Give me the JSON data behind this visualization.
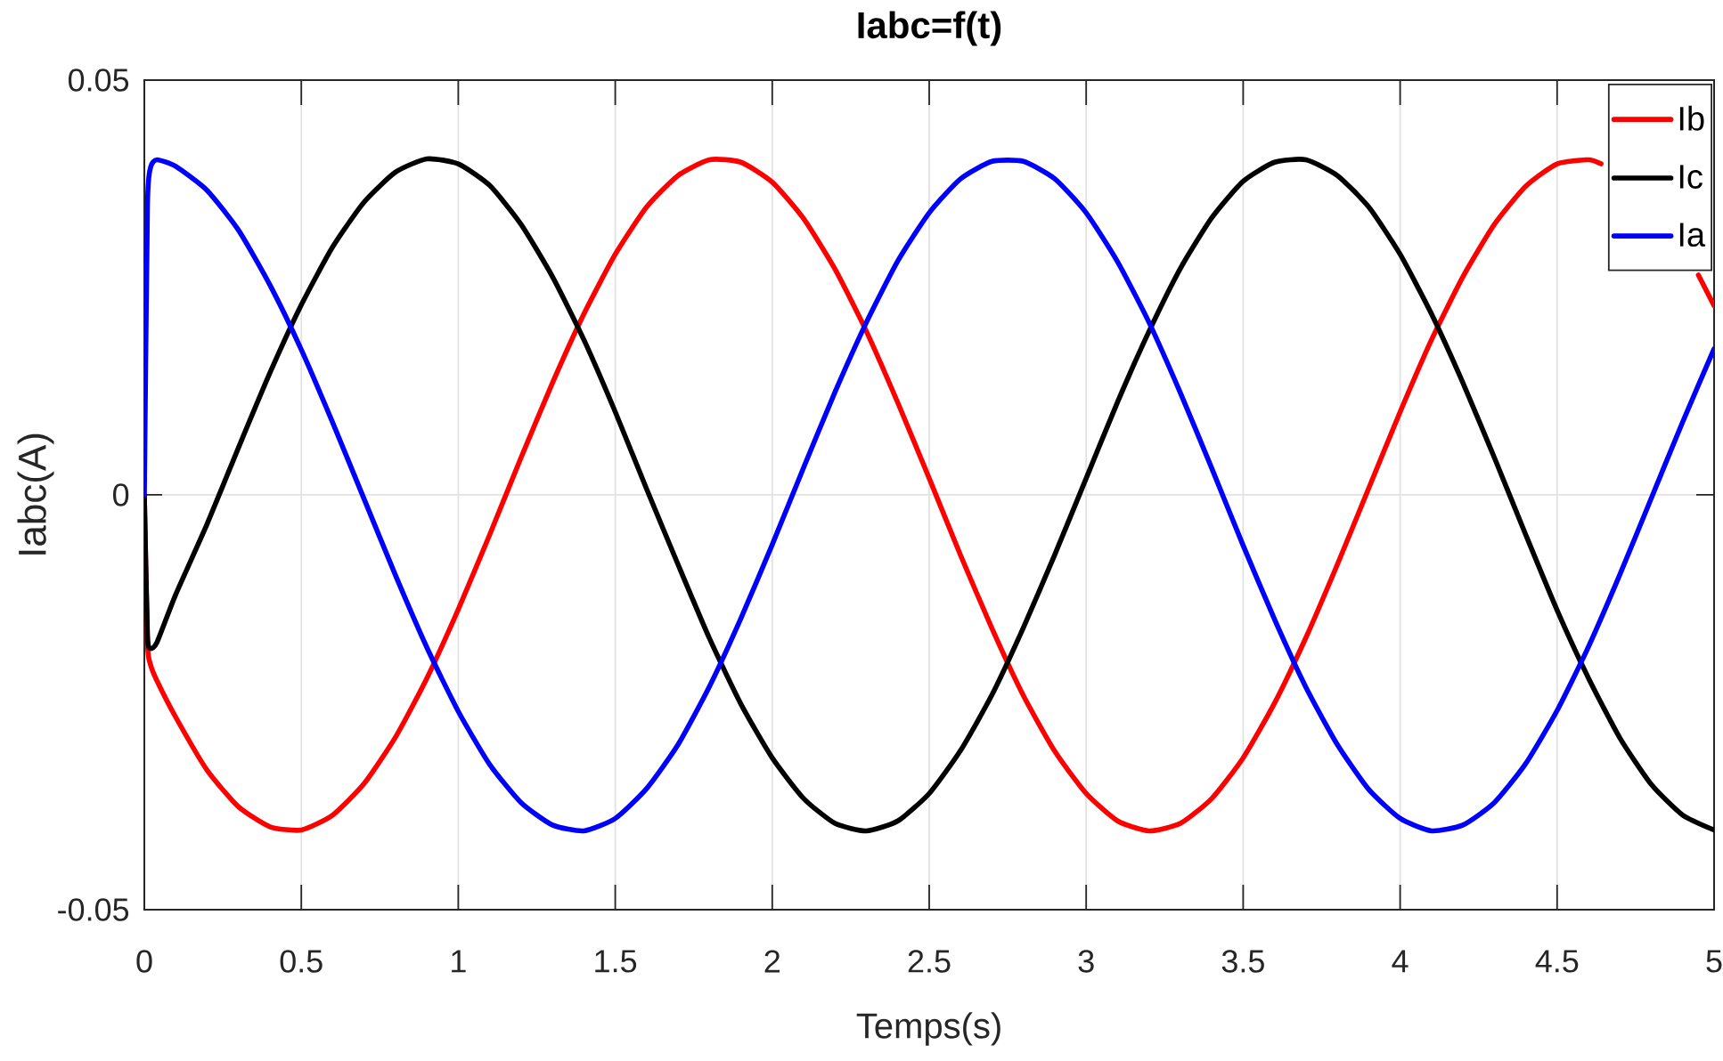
{
  "chart_data": {
    "type": "line",
    "title": "Iabc=f(t)",
    "xlabel": "Temps(s)",
    "ylabel": "Iabc(A)",
    "x": [
      0,
      0.01,
      0.02,
      0.04,
      0.1,
      0.2,
      0.3,
      0.4,
      0.5,
      0.6,
      0.7,
      0.8,
      0.9,
      1.0,
      1.1,
      1.2,
      1.3,
      1.4,
      1.5,
      1.6,
      1.7,
      1.8,
      1.9,
      2.0,
      2.1,
      2.2,
      2.3,
      2.4,
      2.5,
      2.6,
      2.7,
      2.8,
      2.9,
      3.0,
      3.1,
      3.2,
      3.3,
      3.4,
      3.5,
      3.6,
      3.7,
      3.8,
      3.9,
      4.0,
      4.1,
      4.2,
      4.3,
      4.4,
      4.5,
      4.6,
      4.7,
      4.8,
      4.9,
      5.0
    ],
    "series": [
      {
        "name": "Ib",
        "color": "#ff0000",
        "x": [
          0,
          0.01,
          0.02,
          0.04,
          0.1,
          0.2,
          0.3,
          0.4,
          0.5,
          0.6,
          0.7,
          0.8,
          0.9,
          1.0,
          1.1,
          1.2,
          1.3,
          1.4,
          1.5,
          1.6,
          1.7,
          1.8,
          1.9,
          2.0,
          2.1,
          2.2,
          2.3,
          2.4,
          2.5,
          2.6,
          2.7,
          2.8,
          2.9,
          3.0,
          3.1,
          3.2,
          3.3,
          3.4,
          3.5,
          3.6,
          3.7,
          3.8,
          3.9,
          4.0,
          4.1,
          4.2,
          4.3,
          4.4,
          4.5,
          4.6,
          4.64,
          4.8,
          4.95,
          5.0
        ],
        "values": [
          0,
          -0.018,
          -0.0205,
          -0.0224,
          -0.0268,
          -0.0332,
          -0.0376,
          -0.04,
          -0.0404,
          -0.0386,
          -0.0348,
          -0.0292,
          -0.0221,
          -0.0138,
          -0.0048,
          0.0045,
          0.0135,
          0.0218,
          0.029,
          0.0347,
          0.0385,
          0.0404,
          0.0401,
          0.0377,
          0.0333,
          0.0272,
          0.0197,
          0.0111,
          0.002,
          -0.0073,
          -0.0161,
          -0.0242,
          -0.0309,
          -0.036,
          -0.0393,
          -0.0405,
          -0.0396,
          -0.0366,
          -0.0317,
          -0.0251,
          -0.0172,
          -0.0084,
          0.0008,
          0.01,
          0.0187,
          0.0263,
          0.0326,
          0.0372,
          0.0399,
          0.0404,
          0.0399,
          null,
          0.0265,
          0.0228
        ]
      },
      {
        "name": "Ic",
        "color": "#000000",
        "values": [
          0,
          -0.017,
          -0.0185,
          -0.0178,
          -0.012,
          -0.0035,
          0.0057,
          0.0147,
          0.0229,
          0.0299,
          0.0353,
          0.0389,
          0.0405,
          0.0399,
          0.0373,
          0.0326,
          0.0263,
          0.0187,
          0.01,
          0.0007,
          -0.0084,
          -0.0173,
          -0.0252,
          -0.0317,
          -0.0366,
          -0.0396,
          -0.0405,
          -0.0393,
          -0.036,
          -0.0308,
          -0.0241,
          -0.016,
          -0.0072,
          0.002,
          0.0112,
          0.0197,
          0.0273,
          0.0334,
          0.0378,
          0.0401,
          0.0404,
          0.0385,
          0.0347,
          0.029,
          0.0218,
          0.0135,
          0.0045,
          -0.0048,
          -0.0139,
          -0.0221,
          -0.0293,
          -0.0349,
          -0.0386,
          -0.0404
        ]
      },
      {
        "name": "Ia",
        "color": "#0000ff",
        "values": [
          0,
          0.035,
          0.0395,
          0.0404,
          0.0396,
          0.0367,
          0.0319,
          0.0253,
          0.0175,
          0.0087,
          -0.0005,
          -0.0097,
          -0.0184,
          -0.0261,
          -0.0325,
          -0.0371,
          -0.0398,
          -0.0405,
          -0.039,
          -0.0354,
          -0.0301,
          -0.0231,
          -0.0149,
          -0.006,
          0.0033,
          0.0124,
          0.0208,
          0.0282,
          0.034,
          0.0381,
          0.0402,
          0.0402,
          0.0381,
          0.034,
          0.0281,
          0.0208,
          0.0123,
          0.0032,
          -0.0061,
          -0.015,
          -0.0232,
          -0.0301,
          -0.0355,
          -0.039,
          -0.0405,
          -0.0398,
          -0.0371,
          -0.0324,
          -0.026,
          -0.0183,
          -0.0096,
          -0.0004,
          0.0088,
          0.0176
        ]
      }
    ],
    "xlim": [
      0,
      5
    ],
    "ylim": [
      -0.05,
      0.05
    ],
    "xticks": [
      0,
      0.5,
      1,
      1.5,
      2,
      2.5,
      3,
      3.5,
      4,
      4.5,
      5
    ],
    "yticks": [
      -0.05,
      0,
      0.05
    ],
    "grid": true,
    "legend": "top right"
  }
}
